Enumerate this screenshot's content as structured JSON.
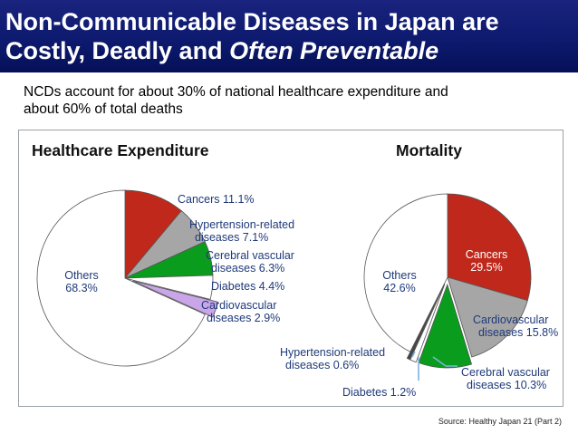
{
  "title": {
    "line1": "Non-Communicable Diseases in Japan are",
    "line2_plain": "Costly, Deadly and ",
    "line2_emphasis": "Often Preventable"
  },
  "subtitle": {
    "line1": "NCDs account for about 30% of national healthcare expenditure and",
    "line2": "about 60% of total deaths"
  },
  "source": "Source: Healthy Japan 21 (Part 2)",
  "colors": {
    "label_text": "#1f3a7a",
    "cancers": "#c0281b",
    "hypertension": "#a6a6a6",
    "cerebral": "#0a9d1d",
    "diabetes": "#ffffff",
    "cardio_exp": "#c9a6e8",
    "cardio_mort": "#a6a6a6",
    "hypertension_mort": "#444444",
    "diabetes_mort": "#ffffff",
    "others": "#ffffff"
  },
  "chart_data": [
    {
      "type": "pie",
      "title": "Healthcare Expenditure",
      "unit": "%",
      "slices": [
        {
          "name": "Cancers",
          "value": 11.1,
          "label_lines": [
            "Cancers 11.1%"
          ],
          "color_key": "cancers"
        },
        {
          "name": "Hypertension-related diseases",
          "value": 7.1,
          "label_lines": [
            "Hypertension-related",
            "diseases 7.1%"
          ],
          "color_key": "hypertension"
        },
        {
          "name": "Cerebral vascular diseases",
          "value": 6.3,
          "label_lines": [
            "Cerebral vascular",
            "diseases 6.3%"
          ],
          "color_key": "cerebral"
        },
        {
          "name": "Diabetes",
          "value": 4.4,
          "label_lines": [
            "Diabetes 4.4%"
          ],
          "color_key": "diabetes"
        },
        {
          "name": "Cardiovascular diseases",
          "value": 2.9,
          "label_lines": [
            "Cardiovascular",
            "diseases 2.9%"
          ],
          "color_key": "cardio_exp",
          "exploded": true
        },
        {
          "name": "Others",
          "value": 68.3,
          "label_lines": [
            "Others",
            "68.3%"
          ],
          "color_key": "others"
        }
      ]
    },
    {
      "type": "pie",
      "title": "Mortality",
      "unit": "%",
      "slices": [
        {
          "name": "Cancers",
          "value": 29.5,
          "label_lines": [
            "Cancers",
            "29.5%"
          ],
          "color_key": "cancers",
          "label_inside": true
        },
        {
          "name": "Cardiovascular diseases",
          "value": 15.8,
          "label_lines": [
            "Cardiovascular",
            "diseases 15.8%"
          ],
          "color_key": "cardio_mort"
        },
        {
          "name": "Cerebral vascular diseases",
          "value": 10.3,
          "label_lines": [
            "Cerebral vascular",
            "diseases 10.3%"
          ],
          "color_key": "cerebral",
          "exploded": true
        },
        {
          "name": "Diabetes",
          "value": 1.2,
          "label_lines": [
            "Diabetes 1.2%"
          ],
          "color_key": "diabetes_mort",
          "exploded": true
        },
        {
          "name": "Hypertension-related diseases",
          "value": 0.6,
          "label_lines": [
            "Hypertension-related",
            "diseases 0.6%"
          ],
          "color_key": "hypertension_mort",
          "exploded": true
        },
        {
          "name": "Others",
          "value": 42.6,
          "label_lines": [
            "Others",
            "42.6%"
          ],
          "color_key": "others"
        }
      ]
    }
  ]
}
